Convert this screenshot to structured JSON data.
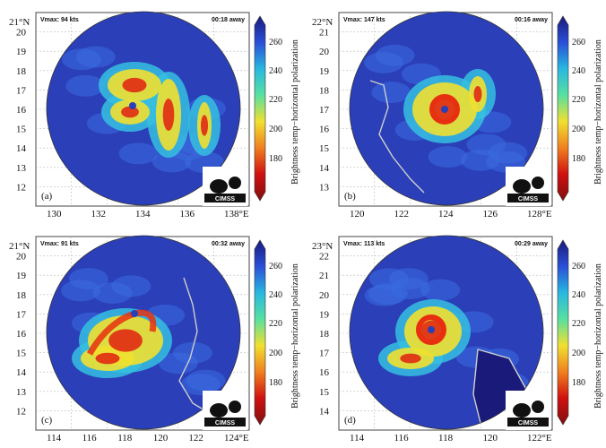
{
  "colorbar": {
    "label": "Brightness temp−horizontal polarization",
    "ticks": [
      "260",
      "240",
      "220",
      "200",
      "180"
    ],
    "colors": [
      "#1a1a7a",
      "#2a4fd8",
      "#28b8e0",
      "#58e0a0",
      "#f0e030",
      "#f08020",
      "#d01010",
      "#801010"
    ]
  },
  "logo": {
    "text": "CIMSS"
  },
  "panels": [
    {
      "label": "(a)",
      "vmax": "Vmax: 94 kts",
      "away": "00:18 away",
      "lat_top": "21°N",
      "lat_ticks": [
        "20",
        "19",
        "18",
        "17",
        "16",
        "15",
        "14",
        "13",
        "12"
      ],
      "lon_ticks": [
        "130",
        "132",
        "134",
        "136",
        "138°E"
      ]
    },
    {
      "label": "(b)",
      "vmax": "Vmax: 147 kts",
      "away": "00:16 away",
      "lat_top": "22°N",
      "lat_ticks": [
        "21",
        "20",
        "19",
        "18",
        "17",
        "16",
        "15",
        "14",
        "13"
      ],
      "lon_ticks": [
        "120",
        "122",
        "124",
        "126",
        "128°E"
      ]
    },
    {
      "label": "(c)",
      "vmax": "Vmax: 91 kts",
      "away": "00:32 away",
      "lat_top": "21°N",
      "lat_ticks": [
        "20",
        "19",
        "18",
        "17",
        "16",
        "15",
        "14",
        "13",
        "12"
      ],
      "lon_ticks": [
        "114",
        "116",
        "118",
        "120",
        "122",
        "124°E"
      ]
    },
    {
      "label": "(d)",
      "vmax": "Vmax: 113 kts",
      "away": "00:29 away",
      "lat_top": "23°N",
      "lat_ticks": [
        "22",
        "21",
        "20",
        "19",
        "18",
        "17",
        "16",
        "15",
        "14"
      ],
      "lon_ticks": [
        "114",
        "116",
        "118",
        "120",
        "122°E"
      ]
    }
  ]
}
